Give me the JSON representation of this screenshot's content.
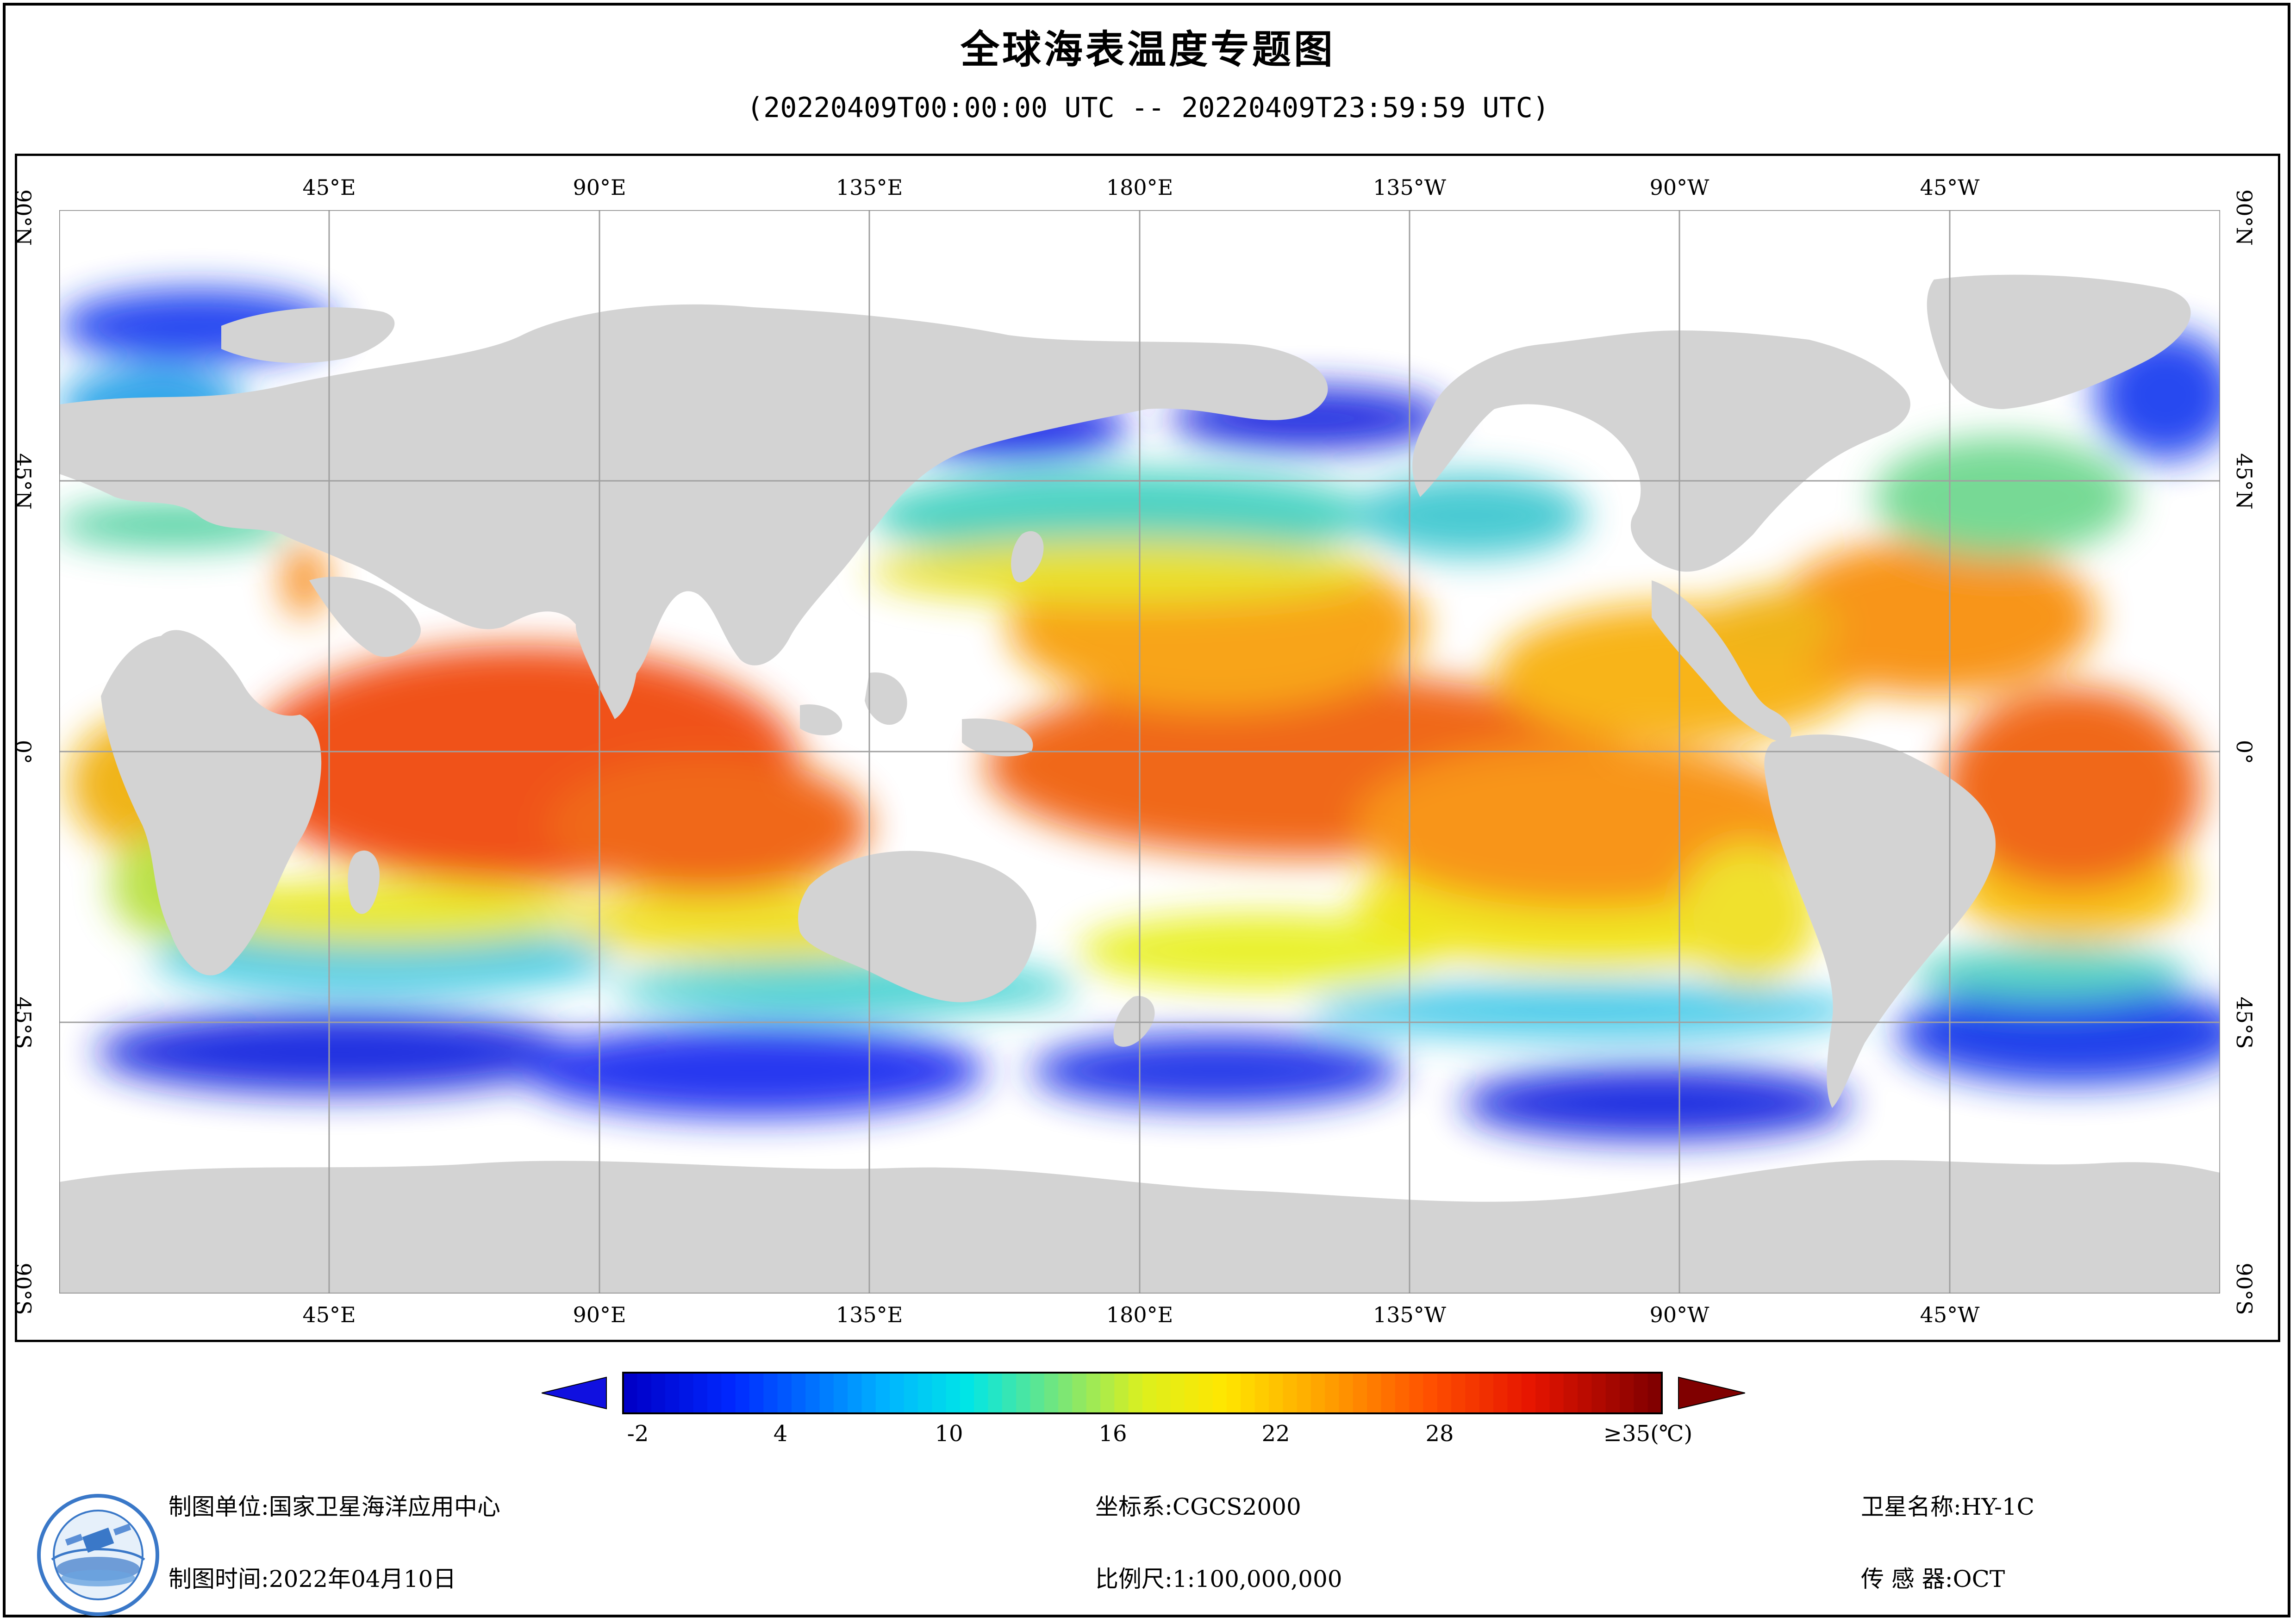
{
  "title": "全球海表温度专题图",
  "subtitle": "(20220409T00:00:00 UTC -- 20220409T23:59:59 UTC)",
  "lon_ticks": [
    "45°E",
    "90°E",
    "135°E",
    "180°E",
    "135°W",
    "90°W",
    "45°W"
  ],
  "lat_ticks": [
    "90°N",
    "45°N",
    "0°",
    "45°S",
    "90°S"
  ],
  "colorbar": {
    "ticks": [
      "-2",
      "4",
      "10",
      "16",
      "22",
      "28"
    ],
    "max_label": "≥35(℃)",
    "min_value": -2,
    "max_value": 35,
    "arrow_low_color": "#1010e0",
    "arrow_high_color": "#800000"
  },
  "footer": {
    "producer_label": "制图单位:国家卫星海洋应用中心",
    "date_label": "制图时间:2022年04月10日",
    "crs_label": "坐标系:CGCS2000",
    "scale_label": "比例尺:1:100,000,000",
    "satellite_label": "卫星名称:HY-1C",
    "sensor_label": "传 感 器:OCT"
  },
  "colors": {
    "land": "#d3d3d3",
    "cloud": "#ffffff",
    "grid": "#a0a0a0"
  }
}
